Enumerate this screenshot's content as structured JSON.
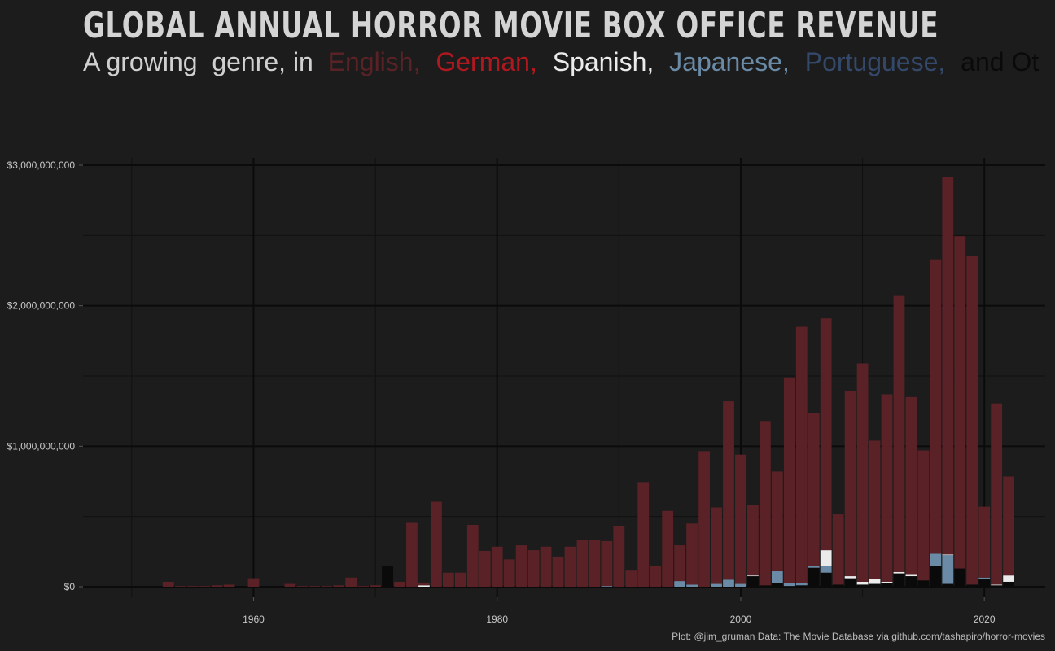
{
  "title": "GLOBAL ANNUAL HORROR MOVIE BOX OFFICE REVENUE",
  "subtitle": {
    "lead": "A growing  genre, in ",
    "languages": [
      {
        "text": "English, ",
        "color": "#5a2226"
      },
      {
        "text": "German, ",
        "color": "#b0181f"
      },
      {
        "text": "Spanish, ",
        "color": "#ebebeb"
      },
      {
        "text": "Japanese, ",
        "color": "#6a8aa6"
      },
      {
        "text": "Portuguese, ",
        "color": "#34486a"
      },
      {
        "text": "and Ot",
        "color": "#0a0a0a"
      }
    ]
  },
  "caption": "Plot: @jim_gruman Data: The Movie Database via github.com/tashapiro/horror-movies",
  "colors": {
    "background": "#1c1c1c",
    "English": "#5a2226",
    "Spanish": "#ebebeb",
    "Japanese": "#6a8aa6",
    "Other": "#0a0a0a"
  },
  "chart_data": {
    "type": "bar",
    "stacked": true,
    "x_ticks": [
      1960,
      1980,
      2000,
      2020
    ],
    "y_ticks": [
      0,
      1000000000,
      2000000000,
      3000000000
    ],
    "y_tick_labels": [
      "$0",
      "$1,000,000,000",
      "$2,000,000,000",
      "$3,000,000,000"
    ],
    "xlim": [
      1946,
      2025
    ],
    "ylim": [
      0,
      3000000000
    ],
    "series_keys": [
      "Other",
      "Japanese",
      "Spanish",
      "English"
    ],
    "x": [
      1953,
      1954,
      1955,
      1956,
      1957,
      1958,
      1959,
      1960,
      1961,
      1962,
      1963,
      1964,
      1965,
      1966,
      1967,
      1968,
      1969,
      1970,
      1971,
      1972,
      1973,
      1974,
      1975,
      1976,
      1977,
      1978,
      1979,
      1980,
      1981,
      1982,
      1983,
      1984,
      1985,
      1986,
      1987,
      1988,
      1989,
      1990,
      1991,
      1992,
      1993,
      1994,
      1995,
      1996,
      1997,
      1998,
      1999,
      2000,
      2001,
      2002,
      2003,
      2004,
      2005,
      2006,
      2007,
      2008,
      2009,
      2010,
      2011,
      2012,
      2013,
      2014,
      2015,
      2016,
      2017,
      2018,
      2019,
      2020,
      2021,
      2022
    ],
    "series": [
      {
        "key": "Other",
        "values": [
          0,
          0,
          0,
          0,
          0,
          0,
          0,
          0,
          0,
          0,
          0,
          0,
          0,
          0,
          0,
          0,
          0,
          0,
          145000000,
          0,
          0,
          0,
          0,
          0,
          0,
          0,
          0,
          0,
          0,
          0,
          0,
          0,
          0,
          0,
          0,
          0,
          0,
          0,
          0,
          0,
          0,
          0,
          0,
          0,
          0,
          0,
          0,
          0,
          75000000,
          10000000,
          25000000,
          5000000,
          10000000,
          135000000,
          100000000,
          15000000,
          60000000,
          15000000,
          20000000,
          25000000,
          95000000,
          75000000,
          45000000,
          150000000,
          20000000,
          130000000,
          15000000,
          55000000,
          10000000,
          35000000
        ]
      },
      {
        "key": "Japanese",
        "values": [
          0,
          0,
          0,
          0,
          0,
          0,
          0,
          0,
          0,
          0,
          0,
          0,
          0,
          0,
          0,
          0,
          0,
          0,
          0,
          0,
          0,
          0,
          0,
          0,
          0,
          0,
          0,
          0,
          0,
          0,
          0,
          0,
          0,
          0,
          0,
          0,
          5000000,
          0,
          0,
          0,
          0,
          0,
          40000000,
          15000000,
          0,
          20000000,
          50000000,
          20000000,
          0,
          0,
          85000000,
          20000000,
          15000000,
          10000000,
          50000000,
          0,
          0,
          0,
          0,
          0,
          0,
          0,
          0,
          85000000,
          205000000,
          0,
          0,
          10000000,
          0,
          0
        ]
      },
      {
        "key": "Spanish",
        "values": [
          0,
          0,
          0,
          0,
          0,
          0,
          0,
          0,
          0,
          0,
          0,
          0,
          0,
          0,
          0,
          0,
          0,
          0,
          0,
          0,
          0,
          10000000,
          0,
          0,
          0,
          0,
          0,
          0,
          0,
          0,
          0,
          0,
          0,
          0,
          0,
          0,
          0,
          0,
          0,
          0,
          0,
          0,
          0,
          0,
          0,
          0,
          0,
          0,
          5000000,
          0,
          0,
          0,
          0,
          0,
          110000000,
          0,
          15000000,
          20000000,
          35000000,
          10000000,
          10000000,
          15000000,
          0,
          0,
          5000000,
          0,
          0,
          0,
          5000000,
          45000000
        ]
      },
      {
        "key": "English",
        "values": [
          35000000,
          5000000,
          5000000,
          5000000,
          10000000,
          15000000,
          0,
          60000000,
          0,
          0,
          20000000,
          5000000,
          5000000,
          5000000,
          10000000,
          65000000,
          5000000,
          10000000,
          0,
          35000000,
          455000000,
          20000000,
          605000000,
          100000000,
          100000000,
          440000000,
          255000000,
          285000000,
          195000000,
          295000000,
          260000000,
          285000000,
          215000000,
          285000000,
          335000000,
          335000000,
          320000000,
          430000000,
          115000000,
          745000000,
          150000000,
          540000000,
          255000000,
          435000000,
          965000000,
          545000000,
          1270000000,
          920000000,
          505000000,
          1170000000,
          710000000,
          1465000000,
          1825000000,
          1090000000,
          1650000000,
          500000000,
          1315000000,
          1555000000,
          985000000,
          1335000000,
          1965000000,
          1260000000,
          925000000,
          2095000000,
          2685000000,
          2365000000,
          2340000000,
          505000000,
          1290000000,
          705000000
        ]
      }
    ]
  }
}
